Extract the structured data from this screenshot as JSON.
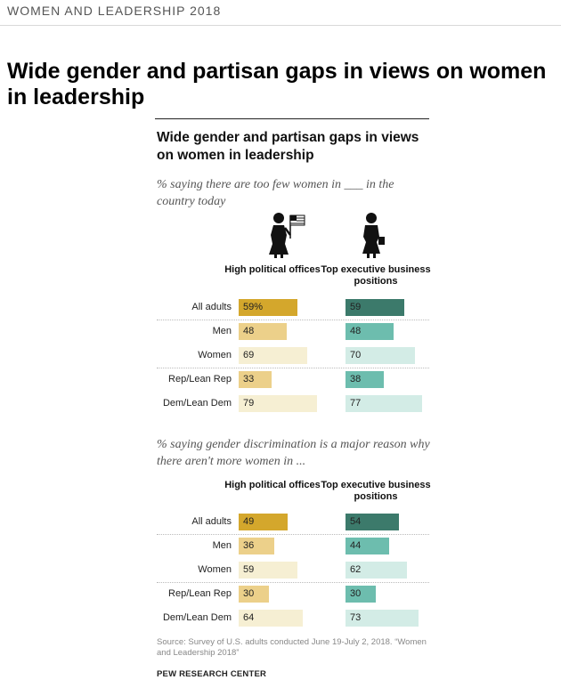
{
  "kicker": "WOMEN AND LEADERSHIP 2018",
  "headline": "Wide gender and partisan gaps in views on women in leadership",
  "chart_title": "Wide gender and partisan gaps in views on women in leadership",
  "colors": {
    "political_all": "#d4a72c",
    "political_sub": "#ecd08a",
    "political_light": "#f6efd3",
    "business_all": "#3c7a6b",
    "business_sub": "#6dbdae",
    "business_light": "#d3ece6"
  },
  "icons": {
    "political": "woman-with-flag-icon",
    "business": "businesswoman-icon"
  },
  "chart_data": [
    {
      "type": "bar",
      "subtitle": "% saying there are too few women in ___ in the country today",
      "columns": [
        "High political offices",
        "Top executive business positions"
      ],
      "categories": [
        "All adults",
        "Men",
        "Women",
        "Rep/Lean Rep",
        "Dem/Lean Dem"
      ],
      "series": [
        {
          "name": "High political offices",
          "values": [
            59,
            48,
            69,
            33,
            79
          ],
          "labels": [
            "59%",
            "48",
            "69",
            "33",
            "79"
          ]
        },
        {
          "name": "Top executive business positions",
          "values": [
            59,
            48,
            70,
            38,
            77
          ],
          "labels": [
            "59",
            "48",
            "70",
            "38",
            "77"
          ]
        }
      ]
    },
    {
      "type": "bar",
      "subtitle": "% saying gender discrimination is a major reason why there aren't more women in ...",
      "columns": [
        "High political offices",
        "Top executive business positions"
      ],
      "categories": [
        "All adults",
        "Men",
        "Women",
        "Rep/Lean Rep",
        "Dem/Lean Dem"
      ],
      "series": [
        {
          "name": "High political offices",
          "values": [
            49,
            36,
            59,
            30,
            64
          ],
          "labels": [
            "49",
            "36",
            "59",
            "30",
            "64"
          ]
        },
        {
          "name": "Top executive business positions",
          "values": [
            54,
            44,
            62,
            30,
            73
          ],
          "labels": [
            "54",
            "44",
            "62",
            "30",
            "73"
          ]
        }
      ]
    }
  ],
  "source": "Source: Survey of U.S. adults conducted June 19-July 2, 2018. “Women and Leadership 2018”",
  "brand": "PEW RESEARCH CENTER"
}
